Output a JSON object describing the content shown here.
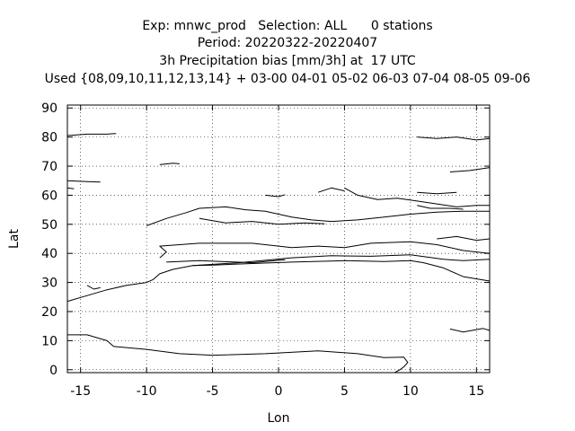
{
  "titles": [
    "Exp: mnwc_prod   Selection: ALL      0 stations",
    "Period: 20220322-20220407",
    "3h Precipitation bias [mm/3h] at  17 UTC",
    "Used {08,09,10,11,12,13,14} + 03-00 04-01 05-02 06-03 07-04 08-05 09-06"
  ],
  "chart_data": {
    "type": "line",
    "xlabel": "Lon",
    "ylabel": "Lat",
    "xlim": [
      -16,
      16
    ],
    "ylim": [
      -1,
      91
    ],
    "xticks": [
      -15,
      -10,
      -5,
      0,
      5,
      10,
      15
    ],
    "yticks": [
      0,
      10,
      20,
      30,
      40,
      50,
      60,
      70,
      80,
      90
    ],
    "grid": true,
    "legend": "none",
    "line_color": "#000000",
    "series": [
      {
        "values": [
          [
            -16,
            23.5
          ],
          [
            -14.5,
            25.5
          ],
          [
            -13,
            27.5
          ],
          [
            -11.5,
            29
          ],
          [
            -10,
            30
          ],
          [
            -9.5,
            31
          ],
          [
            -9,
            33
          ],
          [
            -8,
            34.5
          ],
          [
            -6.5,
            35.8
          ],
          [
            -5,
            36
          ],
          [
            -2,
            36.5
          ],
          [
            1,
            37
          ],
          [
            5,
            37.5
          ],
          [
            8,
            37.2
          ],
          [
            10,
            37.5
          ],
          [
            11,
            36.8
          ],
          [
            12.5,
            35
          ],
          [
            14,
            32
          ],
          [
            16,
            30.5
          ]
        ]
      },
      {
        "values": [
          [
            -9,
            38.5
          ],
          [
            -8.5,
            40.5
          ],
          [
            -9,
            42.5
          ],
          [
            -6,
            43.5
          ],
          [
            -2,
            43.5
          ],
          [
            1,
            42
          ],
          [
            3,
            42.5
          ],
          [
            5,
            42
          ],
          [
            7,
            43.5
          ],
          [
            10,
            44
          ],
          [
            12,
            43
          ],
          [
            14,
            41
          ],
          [
            16,
            40
          ]
        ]
      },
      {
        "values": [
          [
            -6.5,
            35.8
          ],
          [
            -3,
            36.8
          ],
          [
            1,
            38.5
          ],
          [
            4,
            39.2
          ],
          [
            7,
            39
          ],
          [
            10,
            39.5
          ],
          [
            12.5,
            38
          ],
          [
            14,
            37.5
          ],
          [
            16,
            38
          ]
        ]
      },
      {
        "values": [
          [
            -8.5,
            37
          ],
          [
            -6,
            37.5
          ],
          [
            -2,
            36.8
          ],
          [
            0.5,
            37.8
          ]
        ]
      },
      {
        "values": [
          [
            -16,
            12
          ],
          [
            -14.5,
            12
          ],
          [
            -13,
            10
          ],
          [
            -12.5,
            8
          ],
          [
            -10,
            7
          ],
          [
            -7.5,
            5.5
          ],
          [
            -5,
            5
          ],
          [
            -1,
            5.5
          ],
          [
            3,
            6.5
          ],
          [
            6,
            5.5
          ],
          [
            8,
            4.2
          ],
          [
            9.5,
            4.3
          ],
          [
            9.8,
            2.5
          ],
          [
            9.5,
            1
          ],
          [
            9.2,
            0
          ],
          [
            8.8,
            -1
          ]
        ]
      },
      {
        "values": [
          [
            -10,
            49.5
          ],
          [
            -8.5,
            52
          ],
          [
            -7,
            54
          ],
          [
            -6,
            55.5
          ],
          [
            -4,
            56
          ],
          [
            -2.5,
            55
          ],
          [
            -1,
            54.5
          ],
          [
            1,
            52.5
          ],
          [
            2.5,
            51.5
          ],
          [
            4,
            51
          ],
          [
            6,
            51.5
          ],
          [
            8,
            52.5
          ],
          [
            10,
            53.5
          ],
          [
            12,
            54.2
          ],
          [
            14,
            54.5
          ],
          [
            16,
            54.5
          ]
        ]
      },
      {
        "values": [
          [
            -6,
            52
          ],
          [
            -4,
            50.5
          ],
          [
            -2,
            51
          ],
          [
            0,
            50
          ],
          [
            2,
            50.5
          ],
          [
            3.5,
            50.2
          ]
        ]
      },
      {
        "values": [
          [
            5,
            62.5
          ],
          [
            6,
            60
          ],
          [
            7.5,
            58.5
          ],
          [
            9,
            59
          ],
          [
            10.5,
            58
          ],
          [
            12,
            57
          ],
          [
            13.5,
            56
          ],
          [
            15,
            56.5
          ],
          [
            16,
            56.5
          ]
        ]
      },
      {
        "values": [
          [
            10.5,
            56.5
          ],
          [
            11.5,
            55.5
          ],
          [
            13,
            55.5
          ],
          [
            14,
            55.2
          ]
        ]
      },
      {
        "values": [
          [
            -16,
            80.5
          ],
          [
            -14.5,
            81
          ],
          [
            -13,
            81
          ],
          [
            -12.3,
            81.2
          ]
        ]
      },
      {
        "values": [
          [
            -16,
            65
          ],
          [
            -14.5,
            64.7
          ],
          [
            -13.5,
            64.5
          ]
        ]
      },
      {
        "values": [
          [
            -16,
            62.5
          ],
          [
            -15.5,
            62.2
          ]
        ]
      },
      {
        "values": [
          [
            10.5,
            80
          ],
          [
            12,
            79.5
          ],
          [
            13.5,
            80
          ],
          [
            15,
            79
          ],
          [
            16,
            79.5
          ]
        ]
      },
      {
        "values": [
          [
            13,
            68
          ],
          [
            14.5,
            68.5
          ],
          [
            16,
            69.5
          ]
        ]
      },
      {
        "values": [
          [
            -9,
            70.5
          ],
          [
            -8,
            71
          ],
          [
            -7.5,
            70.8
          ]
        ]
      },
      {
        "values": [
          [
            -14.5,
            29
          ],
          [
            -14,
            27.7
          ],
          [
            -13.5,
            28.2
          ]
        ]
      },
      {
        "values": [
          [
            13,
            14
          ],
          [
            14,
            13
          ],
          [
            15.5,
            14.2
          ],
          [
            16,
            13.5
          ]
        ]
      },
      {
        "values": [
          [
            12,
            45
          ],
          [
            13.5,
            45.8
          ],
          [
            15,
            44.5
          ],
          [
            16,
            45
          ]
        ]
      },
      {
        "values": [
          [
            3,
            61
          ],
          [
            4,
            62.5
          ],
          [
            5,
            61.5
          ]
        ]
      },
      {
        "values": [
          [
            10.5,
            61
          ],
          [
            12,
            60.5
          ],
          [
            13.5,
            61
          ]
        ]
      },
      {
        "values": [
          [
            -1,
            60
          ],
          [
            0,
            59.5
          ],
          [
            0.5,
            60.2
          ]
        ]
      }
    ]
  }
}
